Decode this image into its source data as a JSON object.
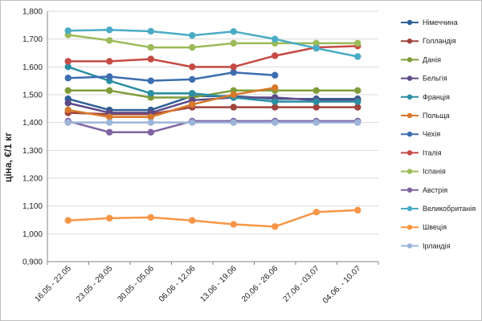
{
  "chart_data": {
    "type": "line",
    "title": "",
    "xlabel": "",
    "ylabel": "ціна, €/1 кг",
    "ylim": [
      0.9,
      1.8
    ],
    "yticks": [
      0.9,
      1.0,
      1.1,
      1.2,
      1.3,
      1.4,
      1.5,
      1.6,
      1.7,
      1.8
    ],
    "ytick_labels": [
      "0,900",
      "1,000",
      "1,100",
      "1,200",
      "1,300",
      "1,400",
      "1,500",
      "1,600",
      "1,700",
      "1,800"
    ],
    "grid": true,
    "legend_position": "right",
    "categories": [
      "16.05 - 22.05",
      "23.05 - 29.05",
      "30.05 - 05.06",
      "06.06 - 12.06",
      "13.06 - 19.06",
      "20.06 - 26.06",
      "27.06 - 03.07",
      "04.06. - 10.07"
    ],
    "series": [
      {
        "name": "Німеччина",
        "color": "#2e5f96",
        "values": [
          1.485,
          1.445,
          1.445,
          1.495,
          1.495,
          1.485,
          1.485,
          1.485
        ]
      },
      {
        "name": "Голландія",
        "color": "#a0433d",
        "values": [
          1.435,
          1.43,
          1.43,
          1.455,
          1.455,
          1.455,
          1.455,
          1.455
        ]
      },
      {
        "name": "Данія",
        "color": "#7f9c3a",
        "values": [
          1.515,
          1.515,
          1.49,
          1.49,
          1.515,
          1.515,
          1.515,
          1.515
        ]
      },
      {
        "name": "Бельгія",
        "color": "#5e4b88",
        "values": [
          1.47,
          1.435,
          1.435,
          1.48,
          1.49,
          1.49,
          1.48,
          1.48
        ]
      },
      {
        "name": "Франція",
        "color": "#2b8ea3",
        "values": [
          1.6,
          1.55,
          1.505,
          1.505,
          1.49,
          1.475,
          1.475,
          1.475
        ]
      },
      {
        "name": "Польща",
        "color": "#d8792b",
        "values": [
          1.445,
          1.42,
          1.42,
          1.465,
          1.5,
          1.525,
          null,
          null
        ]
      },
      {
        "name": "Чехія",
        "color": "#3c6eb0",
        "values": [
          1.56,
          1.565,
          1.55,
          1.555,
          1.58,
          1.57,
          null,
          null
        ]
      },
      {
        "name": "Італія",
        "color": "#c64a44",
        "values": [
          1.62,
          1.62,
          1.628,
          1.6,
          1.6,
          1.64,
          1.67,
          1.675
        ]
      },
      {
        "name": "Іспанія",
        "color": "#9bbb59",
        "values": [
          1.715,
          1.695,
          1.67,
          1.67,
          1.685,
          1.685,
          1.685,
          1.685
        ]
      },
      {
        "name": "Австрія",
        "color": "#8064a2",
        "values": [
          1.405,
          1.365,
          1.365,
          1.405,
          1.405,
          1.405,
          1.405,
          1.405
        ]
      },
      {
        "name": "Великобританія",
        "color": "#4bacc6",
        "values": [
          1.73,
          1.733,
          1.728,
          1.713,
          1.727,
          1.7,
          1.667,
          1.637
        ]
      },
      {
        "name": "Швеція",
        "color": "#f79646",
        "values": [
          1.048,
          1.056,
          1.059,
          1.048,
          1.034,
          1.026,
          1.078,
          1.085
        ]
      },
      {
        "name": "Ірландія",
        "color": "#9cb5d9",
        "values": [
          1.4,
          1.4,
          1.4,
          1.4,
          1.4,
          1.4,
          1.4,
          1.4
        ]
      }
    ]
  }
}
